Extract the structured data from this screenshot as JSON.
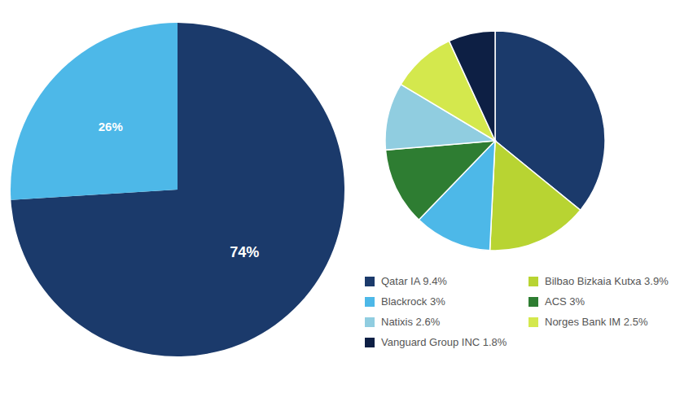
{
  "chart_data": [
    {
      "type": "pie",
      "values": [
        74,
        26
      ],
      "value_labels": [
        "74%",
        "26%"
      ],
      "colors": [
        "#1b3a6b",
        "#4db8e8"
      ],
      "data_labels": true
    },
    {
      "type": "pie",
      "categories": [
        "Qatar IA 9.4%",
        "Bilbao Bizkaia Kutxa 3.9%",
        "Blackrock 3%",
        "ACS 3%",
        "Natixis 2.6%",
        "Norges Bank IM 2.5%",
        "Vanguard Group INC 1.8%"
      ],
      "values": [
        9.4,
        3.9,
        3.0,
        3.0,
        2.6,
        2.5,
        1.8
      ],
      "colors": [
        "#1b3a6b",
        "#b8d432",
        "#4db8e8",
        "#2e7d32",
        "#90cde0",
        "#d4e84d",
        "#0d1f44"
      ],
      "legend": "bottom"
    }
  ]
}
